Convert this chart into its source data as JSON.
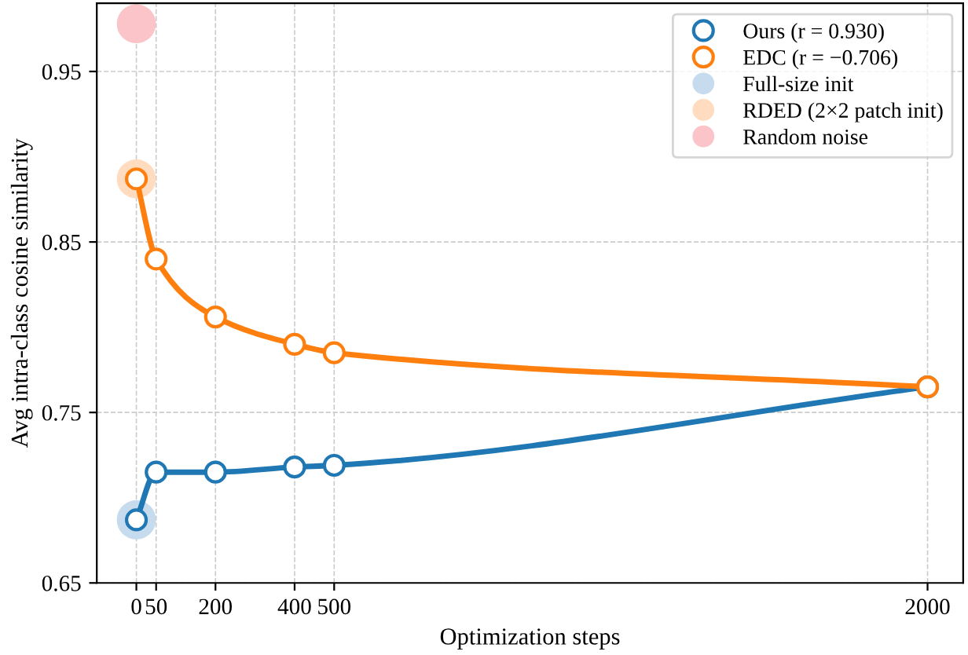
{
  "chart_data": {
    "type": "line",
    "xlabel": "Optimization steps",
    "ylabel": "Avg intra-class cosine similarity",
    "xlim": [
      -100,
      2090
    ],
    "ylim": [
      0.65,
      0.99
    ],
    "xticks": [
      0,
      50,
      200,
      400,
      500,
      2000
    ],
    "yticks": [
      0.65,
      0.75,
      0.85,
      0.95
    ],
    "grid": true,
    "legend": "top right",
    "marker": "circle",
    "line_style": "solid",
    "series": [
      {
        "name": "Ours (r = 0.930)",
        "color": "#1f77b4",
        "x": [
          0,
          50,
          200,
          400,
          500,
          2000
        ],
        "values": [
          0.687,
          0.715,
          0.715,
          0.718,
          0.719,
          0.765
        ]
      },
      {
        "name": "EDC (r = −0.706)",
        "color": "#ff7f0e",
        "x": [
          0,
          50,
          200,
          400,
          500,
          2000
        ],
        "values": [
          0.887,
          0.84,
          0.806,
          0.79,
          0.785,
          0.765
        ]
      },
      {
        "name": "Full-size init",
        "color": "#c6dbed",
        "type": "scatter",
        "x": [
          0
        ],
        "values": [
          0.687
        ]
      },
      {
        "name": "RDED (2×2 patch init)",
        "color": "#ffdcbf",
        "type": "scatter",
        "x": [
          0
        ],
        "values": [
          0.887
        ]
      },
      {
        "name": "Random noise",
        "color": "#fbc4c8",
        "type": "scatter",
        "x": [
          0
        ],
        "values": [
          0.978
        ]
      }
    ]
  }
}
